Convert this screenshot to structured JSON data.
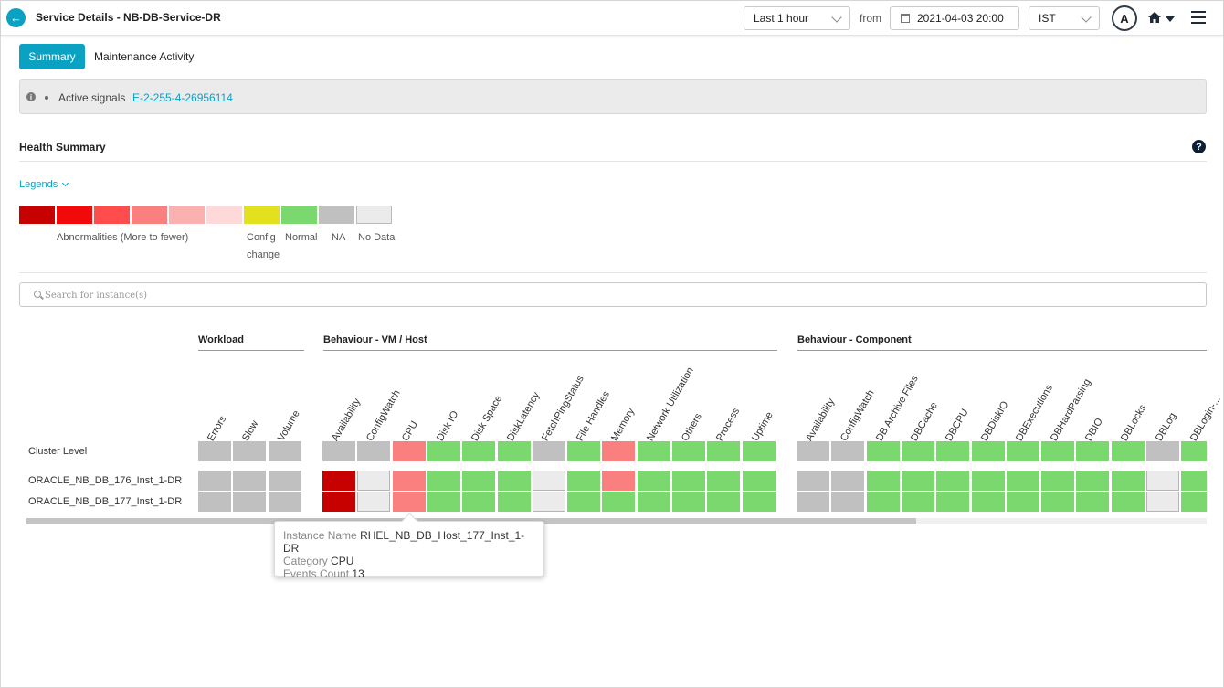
{
  "header": {
    "title": "Service Details - NB-DB-Service-DR",
    "time_range": "Last 1 hour",
    "from_label": "from",
    "date": "2021-04-03 20:00",
    "timezone": "IST",
    "avatar_letter": "A"
  },
  "tabs": [
    {
      "label": "Summary",
      "active": true
    },
    {
      "label": "Maintenance Activity",
      "active": false
    }
  ],
  "signals": {
    "label": "Active signals",
    "link": "E-2-255-4-26956114"
  },
  "health": {
    "title": "Health Summary",
    "legends_toggle": "Legends",
    "legend_colors": [
      "#c70000",
      "#f20a0a",
      "#ff4d4d",
      "#fa7f7f",
      "#fcb1b1",
      "#fdd9d9",
      "#e3e01f",
      "#7bd86f",
      "#c0c0c0",
      "#ebebeb"
    ],
    "legend_labels": {
      "abnormal": "Abnormalities (More to fewer)",
      "config_1": "Config",
      "config_2": "change",
      "normal": "Normal",
      "na": "NA",
      "nodata": "No Data"
    },
    "search_placeholder": "Search for instance(s)"
  },
  "grid": {
    "groups": {
      "workload": "Workload",
      "vm_host": "Behaviour - VM / Host",
      "component": "Behaviour - Component"
    },
    "columns": {
      "workload": [
        "Errors",
        "Slow",
        "Volume"
      ],
      "vm_host": [
        "Availability",
        "ConfigWatch",
        "CPU",
        "Disk IO",
        "Disk Space",
        "DiskLatency",
        "FetchPingStatus",
        "File Handles",
        "Memory",
        "Network Utilization",
        "Others",
        "Process",
        "Uptime"
      ],
      "component": [
        "Availability",
        "ConfigWatch",
        "DB Archive Files",
        "DBCache",
        "DBCPU",
        "DBDiskIO",
        "DBExecutions",
        "DBHardParsing",
        "DBIO",
        "DBLocks",
        "DBLog",
        "DBLogin-..."
      ]
    },
    "rows": [
      {
        "label": "Cluster Level",
        "workload": [
          "na",
          "na",
          "na"
        ],
        "vm_host": [
          "na",
          "na",
          "med",
          "ok",
          "ok",
          "ok",
          "na",
          "ok",
          "med",
          "ok",
          "ok",
          "ok",
          "ok"
        ],
        "component": [
          "na",
          "na",
          "ok",
          "ok",
          "ok",
          "ok",
          "ok",
          "ok",
          "ok",
          "ok",
          "na",
          "ok"
        ]
      },
      {
        "label": "ORACLE_NB_DB_176_Inst_1-DR",
        "workload": [
          "na",
          "na",
          "na"
        ],
        "vm_host": [
          "high",
          "nodata",
          "med",
          "ok",
          "ok",
          "ok",
          "nodata",
          "ok",
          "med",
          "ok",
          "ok",
          "ok",
          "ok"
        ],
        "component": [
          "na",
          "na",
          "ok",
          "ok",
          "ok",
          "ok",
          "ok",
          "ok",
          "ok",
          "ok",
          "nodata",
          "ok"
        ]
      },
      {
        "label": "ORACLE_NB_DB_177_Inst_1-DR",
        "workload": [
          "na",
          "na",
          "na"
        ],
        "vm_host": [
          "high",
          "nodata",
          "med",
          "ok",
          "ok",
          "ok",
          "nodata",
          "ok",
          "ok",
          "ok",
          "ok",
          "ok",
          "ok"
        ],
        "component": [
          "na",
          "na",
          "ok",
          "ok",
          "ok",
          "ok",
          "ok",
          "ok",
          "ok",
          "ok",
          "nodata",
          "ok"
        ]
      }
    ],
    "status_colors": {
      "high": "#c70000",
      "med": "#fa7f7f",
      "ok": "#7bd86f",
      "na": "#c0c0c0",
      "nodata": "#ebebeb"
    }
  },
  "tooltip": {
    "instance_key": "Instance Name",
    "instance_value": "RHEL_NB_DB_Host_177_Inst_1-DR",
    "category_key": "Category",
    "category_value": "CPU",
    "events_key": "Events Count",
    "events_value": "13"
  }
}
